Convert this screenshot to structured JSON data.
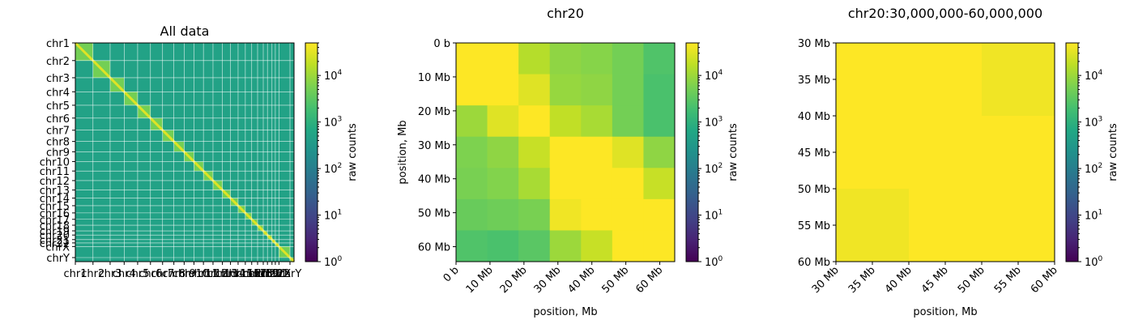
{
  "colorbar_label": "raw counts",
  "colorbar_ticks": [
    {
      "value": 1,
      "base": "10",
      "exp": "0"
    },
    {
      "value": 10,
      "base": "10",
      "exp": "1"
    },
    {
      "value": 100,
      "base": "10",
      "exp": "2"
    },
    {
      "value": 1000,
      "base": "10",
      "exp": "3"
    },
    {
      "value": 10000,
      "base": "10",
      "exp": "4"
    }
  ],
  "chart_data": [
    {
      "type": "heatmap",
      "title": "All data",
      "xlabel": "",
      "ylabel": "",
      "color_scale": "log",
      "colormap": "viridis",
      "color_range": [
        1,
        50000
      ],
      "chromosomes": [
        "chr1",
        "chr2",
        "chr3",
        "chr4",
        "chr5",
        "chr6",
        "chr7",
        "chr8",
        "chr9",
        "chr10",
        "chr11",
        "chr12",
        "chr13",
        "chr14",
        "chr15",
        "chr16",
        "chr17",
        "chr18",
        "chr19",
        "chr20",
        "chr21",
        "chr22",
        "chrX",
        "chrY"
      ],
      "chromosome_lengths_mb": [
        249,
        242,
        198,
        190,
        181,
        171,
        159,
        145,
        138,
        134,
        135,
        133,
        114,
        107,
        102,
        90,
        83,
        80,
        59,
        64,
        47,
        51,
        156,
        57
      ],
      "diagonal_counts": 30000,
      "background_counts": 500
    },
    {
      "type": "heatmap",
      "title": "chr20",
      "xlabel": "position, Mb",
      "ylabel": "position, Mb",
      "color_scale": "log",
      "colormap": "viridis",
      "color_range": [
        1,
        50000
      ],
      "x_range_mb": [
        0,
        64.4
      ],
      "y_range_mb": [
        0,
        64.4
      ],
      "bin_edges_mb": [
        0,
        9.2,
        18.4,
        27.6,
        36.8,
        46.0,
        55.2,
        64.4
      ],
      "x_ticks": [
        {
          "value": 0,
          "label": "0 b"
        },
        {
          "value": 10,
          "label": "10 Mb"
        },
        {
          "value": 20,
          "label": "20 Mb"
        },
        {
          "value": 30,
          "label": "30 Mb"
        },
        {
          "value": 40,
          "label": "40 Mb"
        },
        {
          "value": 50,
          "label": "50 Mb"
        },
        {
          "value": 60,
          "label": "60 Mb"
        }
      ],
      "y_ticks": [
        {
          "value": 0,
          "label": "0 b"
        },
        {
          "value": 10,
          "label": "10 Mb"
        },
        {
          "value": 20,
          "label": "20 Mb"
        },
        {
          "value": 30,
          "label": "30 Mb"
        },
        {
          "value": 40,
          "label": "40 Mb"
        },
        {
          "value": 50,
          "label": "50 Mb"
        },
        {
          "value": 60,
          "label": "60 Mb"
        }
      ],
      "values": [
        [
          50000,
          50000,
          15000,
          8000,
          7000,
          5000,
          2500
        ],
        [
          50000,
          50000,
          30000,
          9000,
          8000,
          5000,
          2200
        ],
        [
          10000,
          30000,
          50000,
          18000,
          12000,
          5000,
          2200
        ],
        [
          6000,
          8000,
          20000,
          50000,
          50000,
          30000,
          8000
        ],
        [
          5500,
          6500,
          12000,
          50000,
          50000,
          50000,
          20000
        ],
        [
          4000,
          4500,
          5500,
          40000,
          50000,
          50000,
          50000
        ],
        [
          2500,
          2200,
          3000,
          10000,
          20000,
          50000,
          50000
        ]
      ]
    },
    {
      "type": "heatmap",
      "title": "chr20:30,000,000-60,000,000",
      "xlabel": "position, Mb",
      "ylabel": "",
      "color_scale": "log",
      "colormap": "viridis",
      "color_range": [
        1,
        50000
      ],
      "x_range_mb": [
        30,
        60
      ],
      "y_range_mb": [
        30,
        60
      ],
      "bin_edges_mb": [
        30,
        40,
        50,
        60
      ],
      "x_ticks": [
        {
          "value": 30,
          "label": "30 Mb"
        },
        {
          "value": 35,
          "label": "35 Mb"
        },
        {
          "value": 40,
          "label": "40 Mb"
        },
        {
          "value": 45,
          "label": "45 Mb"
        },
        {
          "value": 50,
          "label": "50 Mb"
        },
        {
          "value": 55,
          "label": "55 Mb"
        },
        {
          "value": 60,
          "label": "60 Mb"
        }
      ],
      "y_ticks": [
        {
          "value": 30,
          "label": "30 Mb"
        },
        {
          "value": 35,
          "label": "35 Mb"
        },
        {
          "value": 40,
          "label": "40 Mb"
        },
        {
          "value": 45,
          "label": "45 Mb"
        },
        {
          "value": 50,
          "label": "50 Mb"
        },
        {
          "value": 55,
          "label": "55 Mb"
        },
        {
          "value": 60,
          "label": "60 Mb"
        }
      ],
      "values": [
        [
          50000,
          50000,
          40000
        ],
        [
          50000,
          50000,
          50000
        ],
        [
          40000,
          50000,
          50000
        ]
      ]
    }
  ]
}
